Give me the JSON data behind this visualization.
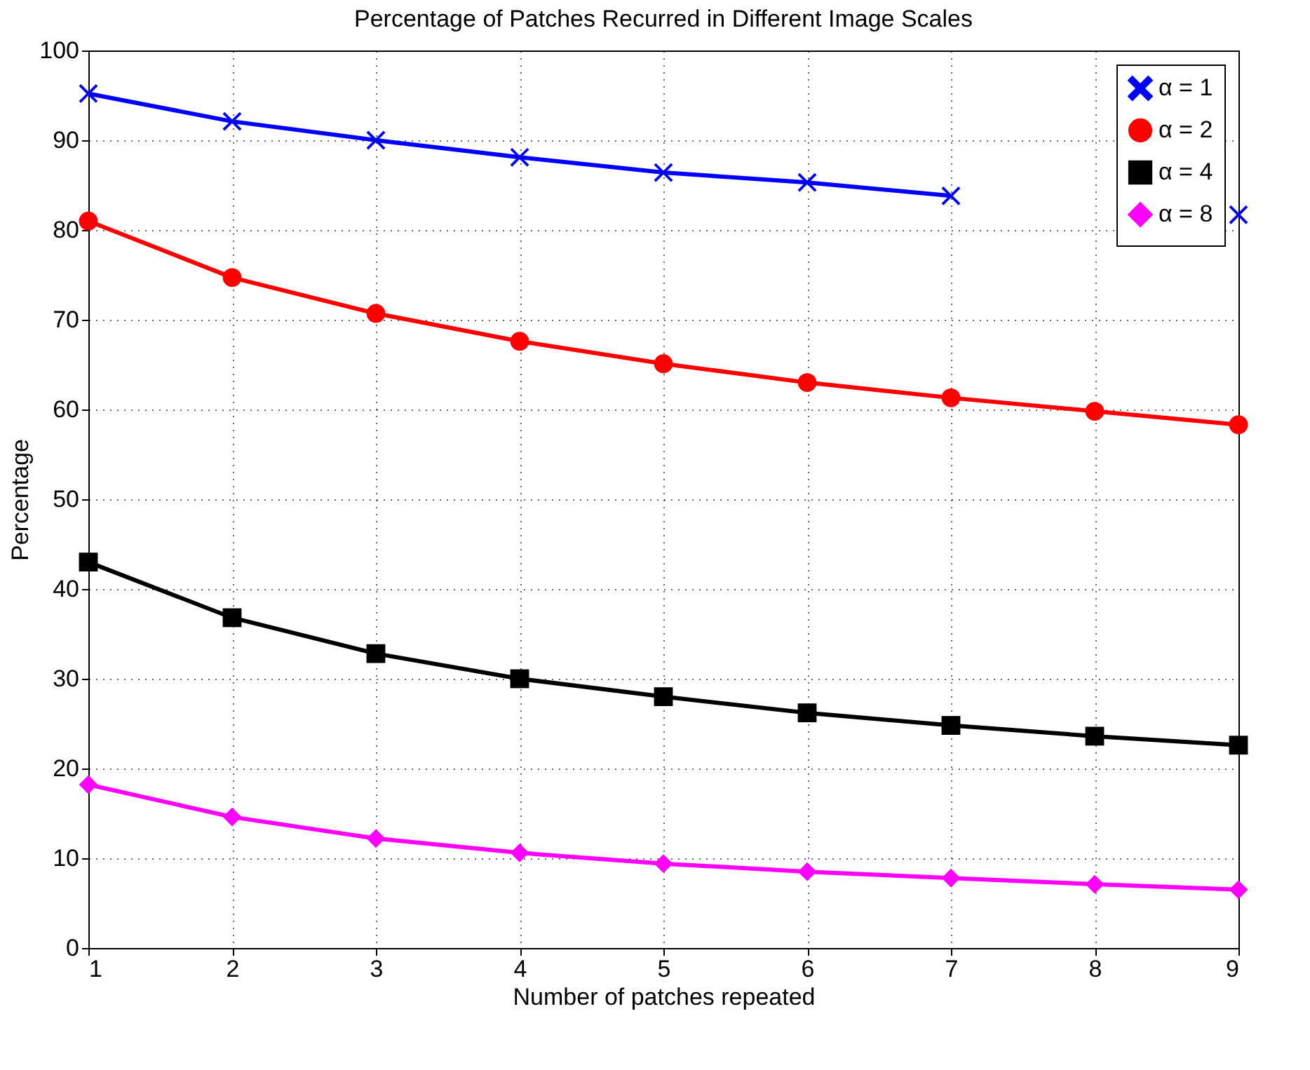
{
  "chart_data": {
    "type": "line",
    "title": "Percentage of Patches Recurred in Different Image Scales",
    "xlabel": "Number of patches repeated",
    "ylabel": "Percentage",
    "x": [
      1,
      2,
      3,
      4,
      5,
      6,
      7,
      8,
      9
    ],
    "xlim": [
      1,
      9
    ],
    "xticks": [
      1,
      2,
      3,
      4,
      5,
      6,
      7,
      8,
      9
    ],
    "ylim": [
      0,
      100
    ],
    "yticks": [
      0,
      10,
      20,
      30,
      40,
      50,
      60,
      70,
      80,
      90,
      100
    ],
    "grid": true,
    "legend": "top right",
    "line_style": "solid",
    "series": [
      {
        "name": "α = 1",
        "color": "#0000ff",
        "marker": "cross",
        "values": [
          95.2,
          92.1,
          90.0,
          88.1,
          86.4,
          85.3,
          83.8,
          null,
          81.7
        ]
      },
      {
        "name": "α = 2",
        "color": "#ff0000",
        "marker": "circle",
        "values": [
          81.0,
          74.7,
          70.7,
          67.6,
          65.1,
          63.0,
          61.3,
          59.8,
          58.3
        ]
      },
      {
        "name": "α = 4",
        "color": "#000000",
        "marker": "square",
        "values": [
          43.0,
          36.8,
          32.8,
          30.0,
          28.0,
          26.2,
          24.8,
          23.6,
          22.6
        ]
      },
      {
        "name": "α = 8",
        "color": "#ff00ff",
        "marker": "diamond",
        "values": [
          18.2,
          14.6,
          12.2,
          10.6,
          9.4,
          8.5,
          7.8,
          7.1,
          6.5
        ]
      }
    ]
  }
}
